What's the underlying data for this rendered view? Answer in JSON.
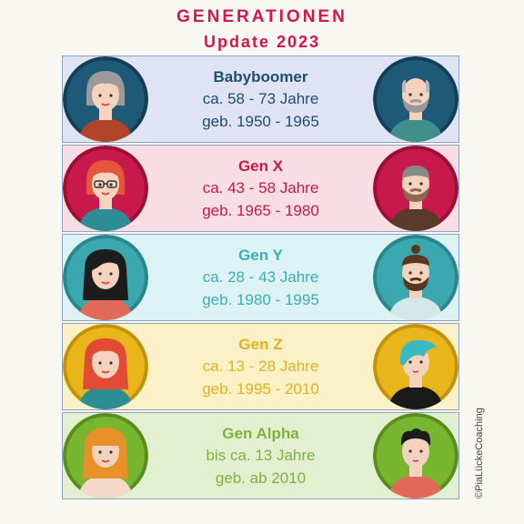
{
  "header": {
    "title": "GENERATIONEN",
    "subtitle": "Update 2023"
  },
  "generations": [
    {
      "name": "Babyboomer",
      "age": "ca. 58 - 73 Jahre",
      "born": "geb. 1950 - 1965",
      "bg": "#dfe3f3",
      "text_color": "#1e4e6e",
      "circle_color": "#1e5a78",
      "ring_color": "#143e56",
      "female_hair": "#9a9a9a",
      "female_shirt": "#b0452a",
      "male_hair": "#b9b9b9",
      "male_beard": "#9a9a9a",
      "male_shirt": "#3f8f8a",
      "female_icon": "babyboomer-woman-avatar-icon",
      "male_icon": "babyboomer-man-avatar-icon"
    },
    {
      "name": "Gen X",
      "age": "ca. 43 - 58 Jahre",
      "born": "geb. 1965 - 1980",
      "bg": "#f9dde5",
      "text_color": "#c41a4a",
      "circle_color": "#c8194c",
      "ring_color": "#9b0f37",
      "female_hair": "#e5553c",
      "female_shirt": "#2e8d94",
      "male_hair": "#8a8a8a",
      "male_beard": "#8a6a4e",
      "male_shirt": "#5a3a28",
      "female_icon": "genx-woman-with-glasses-avatar-icon",
      "male_icon": "genx-man-avatar-icon"
    },
    {
      "name": "Gen Y",
      "age": "ca. 28 - 43 Jahre",
      "born": "geb. 1980 - 1995",
      "bg": "#ddf2f4",
      "text_color": "#3aaeb3",
      "circle_color": "#3ba8b0",
      "ring_color": "#2a868d",
      "female_hair": "#1c1c1c",
      "female_shirt": "#e26a58",
      "male_hair": "#5a3520",
      "male_beard": "#5a3520",
      "male_shirt": "#d4e8ea",
      "female_icon": "geny-woman-avatar-icon",
      "male_icon": "geny-man-with-beard-avatar-icon"
    },
    {
      "name": "Gen Z",
      "age": "ca. 13 - 28 Jahre",
      "born": "geb. 1995 - 2010",
      "bg": "#faf1c6",
      "text_color": "#e2b020",
      "circle_color": "#e8b61a",
      "ring_color": "#c4920a",
      "female_hair": "#e24b33",
      "female_shirt": "#2e8d94",
      "male_hair": "#3bb8c2",
      "male_beard": "",
      "male_shirt": "#1a1a1a",
      "female_icon": "genz-woman-avatar-icon",
      "male_icon": "genz-man-blue-hair-avatar-icon"
    },
    {
      "name": "Gen Alpha",
      "age": "bis ca. 13 Jahre",
      "born": "geb. ab 2010",
      "bg": "#e2efd0",
      "text_color": "#7fb23c",
      "circle_color": "#78b530",
      "ring_color": "#5a8e1c",
      "female_hair": "#e8902a",
      "female_shirt": "#f3d9c8",
      "male_hair": "#1c1c1c",
      "male_beard": "",
      "male_shirt": "#e26a58",
      "female_icon": "genalpha-girl-avatar-icon",
      "male_icon": "genalpha-boy-avatar-icon"
    }
  ],
  "copyright": "©PiaLückeCoaching"
}
